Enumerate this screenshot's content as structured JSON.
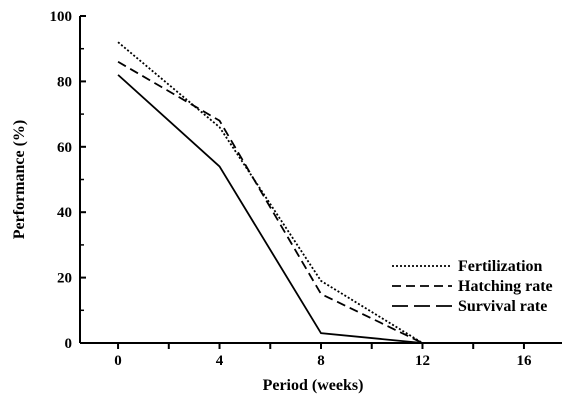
{
  "chart_data": {
    "type": "line",
    "title": "",
    "xlabel": "Period (weeks)",
    "ylabel": "Performance (%)",
    "x": [
      0,
      4,
      8,
      12
    ],
    "x_ticks": [
      "0",
      "4",
      "8",
      "12",
      "16"
    ],
    "y_ticks": [
      "0",
      "20",
      "40",
      "60",
      "80",
      "100"
    ],
    "xlim": [
      -1.5,
      17.5
    ],
    "ylim": [
      0,
      100
    ],
    "grid": false,
    "legend_position": "right",
    "series": [
      {
        "name": "Fertilization",
        "dash": "dotted",
        "values": [
          92,
          66,
          19,
          0
        ]
      },
      {
        "name": "Hatching rate",
        "dash": "dashed",
        "values": [
          86,
          68,
          15,
          0
        ]
      },
      {
        "name": "Survival rate",
        "dash": "long-dash",
        "values": [
          82,
          54,
          3,
          0
        ]
      }
    ]
  }
}
